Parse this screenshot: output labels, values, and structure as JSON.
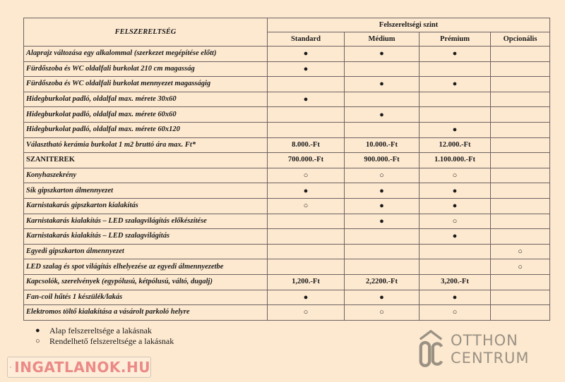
{
  "table": {
    "main_header": "FELSZERELTSÉG",
    "group_header": "Felszereltségi szint",
    "columns": [
      "Standard",
      "Médium",
      "Prémium",
      "Opcionális"
    ],
    "rows": [
      {
        "label": "Alaprajz változása egy alkalommal (szerkezet megépítése előtt)",
        "values": [
          "●",
          "●",
          "●",
          ""
        ]
      },
      {
        "label": "Fürdőszoba és WC oldalfali burkolat 210 cm magasság",
        "values": [
          "●",
          "",
          "",
          ""
        ]
      },
      {
        "label": "Fürdőszoba és WC oldalfali burkolat mennyezet magasságig",
        "values": [
          "",
          "●",
          "●",
          ""
        ]
      },
      {
        "label": "Hidegburkolat  padló, oldalfal max. mérete 30x60",
        "values": [
          "●",
          "",
          "",
          ""
        ]
      },
      {
        "label": "Hidegburkolat  padló, oldalfal  max. mérete 60x60",
        "values": [
          "",
          "●",
          "",
          ""
        ]
      },
      {
        "label": "Hidegburkolat  padló, oldalfal max. mérete 60x120",
        "values": [
          "",
          "",
          "●",
          ""
        ]
      },
      {
        "label": "Választható kerámia burkolat 1 m2 bruttó ára max. Ft*",
        "values": [
          "8.000.-Ft",
          "10.000.-Ft",
          "12.000.-Ft",
          ""
        ]
      },
      {
        "label": "SZANITEREK",
        "plain": true,
        "values": [
          "700.000.-Ft",
          "900.000.-Ft",
          "1.100.000.-Ft",
          ""
        ]
      },
      {
        "label": "Konyhaszekrény",
        "values": [
          "○",
          "○",
          "○",
          ""
        ]
      },
      {
        "label": "Sík gipszkarton álmennyezet",
        "values": [
          "●",
          "●",
          "●",
          ""
        ]
      },
      {
        "label": "Karnistakarás gipszkarton kialakítás",
        "values": [
          "○",
          "●",
          "●",
          ""
        ]
      },
      {
        "label": "Karnistakarás kialakítás – LED szalagvilágítás előkészítése",
        "values": [
          "",
          "●",
          "○",
          ""
        ]
      },
      {
        "label": "Karnistakarás kialakítás – LED szalagvilágítás",
        "values": [
          "",
          "",
          "●",
          ""
        ]
      },
      {
        "label": "Egyedi gipszkarton álmennyezet",
        "values": [
          "",
          "",
          "",
          "○"
        ]
      },
      {
        "label": "LED szalag és spot világítás elhelyezése az egyedi álmennyezetbe",
        "values": [
          "",
          "",
          "",
          "○"
        ]
      },
      {
        "label": "Kapcsolók, szerelvények (egypólusú, kétpólusú, váltó, dugalj)",
        "values": [
          "1,200.-Ft",
          "2,2200.-Ft",
          "3,200.-Ft",
          ""
        ]
      },
      {
        "label": "Fan-coil hűtés 1 készülék/lakás",
        "values": [
          "●",
          "●",
          "●",
          ""
        ]
      },
      {
        "label": "Elektromos töltő kialakítása a vásárolt parkoló helyre",
        "values": [
          "○",
          "○",
          "○",
          ""
        ]
      }
    ]
  },
  "legend": [
    {
      "symbol": "●",
      "text": "Alap felszereltsége a lakásnak"
    },
    {
      "symbol": "○",
      "text": "Rendelhető felszereltsége a lakásnak"
    }
  ],
  "watermarks": {
    "otthon_centrum": [
      "OTTHON",
      "CENTRUM"
    ],
    "ingatlanok": "INGATLANOK.HU"
  },
  "colors": {
    "background": "#fde9d0",
    "border": "#6e6262",
    "watermark_gray": "#8a857c",
    "watermark_pink": "#e87878"
  }
}
